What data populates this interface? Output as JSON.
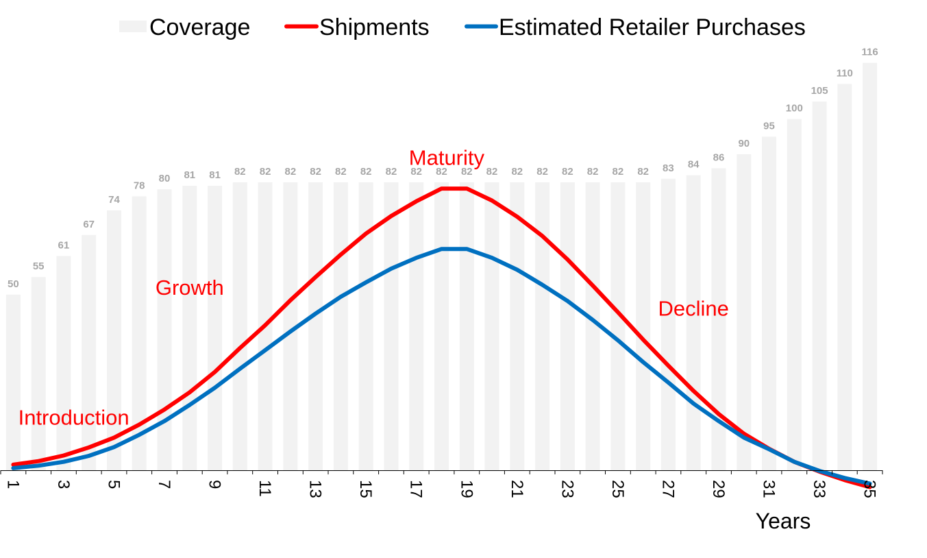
{
  "chart_data": {
    "type": "bar+line",
    "x": [
      1,
      2,
      3,
      4,
      5,
      6,
      7,
      8,
      9,
      10,
      11,
      12,
      13,
      14,
      15,
      16,
      17,
      18,
      19,
      20,
      21,
      22,
      23,
      24,
      25,
      26,
      27,
      28,
      29,
      30,
      31,
      32,
      33,
      34,
      35
    ],
    "xlabel": "Years",
    "x_tick_labels": [
      "1",
      "3",
      "5",
      "7",
      "9",
      "11",
      "13",
      "15",
      "17",
      "19",
      "21",
      "23",
      "25",
      "27",
      "29",
      "31",
      "33",
      "35"
    ],
    "ylim": [
      0,
      130
    ],
    "grid": false,
    "legend_position": "top",
    "series": [
      {
        "name": "Coverage",
        "type": "bar",
        "color": "#f2f2f2",
        "label_color": "#a6a6a6",
        "values": [
          50,
          55,
          61,
          67,
          74,
          78,
          80,
          81,
          81,
          82,
          82,
          82,
          82,
          82,
          82,
          82,
          82,
          82,
          82,
          82,
          82,
          82,
          82,
          82,
          82,
          82,
          83,
          84,
          86,
          90,
          95,
          100,
          105,
          110,
          116
        ]
      },
      {
        "name": "Shipments",
        "type": "line",
        "color": "#ff0000",
        "values": [
          1.6,
          2.6,
          4.2,
          6.5,
          9.3,
          13.0,
          17.3,
          22.2,
          28.0,
          34.8,
          41.3,
          48.4,
          55.0,
          61.4,
          67.4,
          72.4,
          76.6,
          80.2,
          80.2,
          76.8,
          72.2,
          66.7,
          60.0,
          52.6,
          45.0,
          37.2,
          29.8,
          22.6,
          16.0,
          10.4,
          6.1,
          2.4,
          -0.4,
          -2.8,
          -4.8
        ]
      },
      {
        "name": "Estimated Retailer Purchases",
        "type": "line",
        "color": "#0070c0",
        "values": [
          0.6,
          1.3,
          2.4,
          4.1,
          6.6,
          10.1,
          14.0,
          18.6,
          23.5,
          28.9,
          34.2,
          39.5,
          44.6,
          49.4,
          53.5,
          57.4,
          60.5,
          63.0,
          63.0,
          60.5,
          57.1,
          52.8,
          48.2,
          42.8,
          37.0,
          30.8,
          25.0,
          19.0,
          14.0,
          9.3,
          6.0,
          2.4,
          -0.2,
          -2.2,
          -3.8
        ]
      }
    ],
    "annotations": [
      {
        "text": "Introduction",
        "at_x": 3.4,
        "at_y": 13
      },
      {
        "text": "Growth",
        "at_x": 8.0,
        "at_y": 50
      },
      {
        "text": "Maturity",
        "at_x": 18.2,
        "at_y": 87
      },
      {
        "text": "Decline",
        "at_x": 28.0,
        "at_y": 44
      }
    ]
  }
}
